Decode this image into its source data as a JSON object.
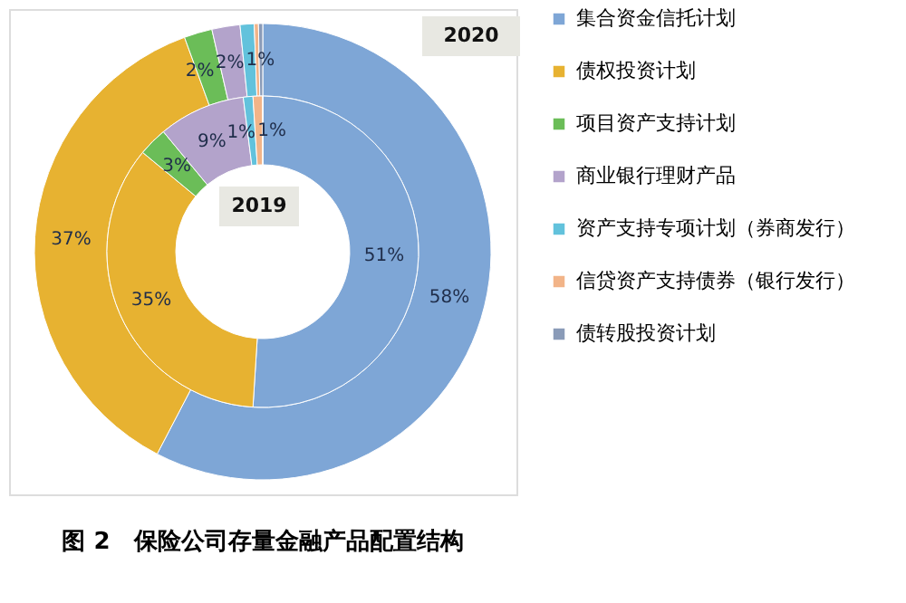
{
  "chart_data": {
    "type": "donut",
    "title": "图 2　保险公司存量金融产品配置结构",
    "categories": [
      "集合资金信托计划",
      "债权投资计划",
      "项目资产支持计划",
      "商业银行理财产品",
      "资产支持专项计划（券商发行）",
      "信贷资产支持债券（银行发行）",
      "债转股投资计划"
    ],
    "colors": [
      "#7ea6d6",
      "#e7b231",
      "#6bbd58",
      "#b3a3cb",
      "#62c2dc",
      "#f2b488",
      "#8a9bb8"
    ],
    "series": [
      {
        "name": "2020",
        "values": [
          58,
          37,
          2,
          2,
          1,
          0.3,
          0.3
        ],
        "value_labels": [
          "58%",
          "37%",
          "2%",
          "2%",
          "1%",
          null,
          null
        ]
      },
      {
        "name": "2019",
        "values": [
          51,
          35,
          3,
          9,
          1,
          1,
          0
        ],
        "value_labels": [
          "51%",
          "35%",
          "3%",
          "9%",
          "1%",
          "1%",
          null
        ]
      }
    ],
    "legend": "right"
  }
}
